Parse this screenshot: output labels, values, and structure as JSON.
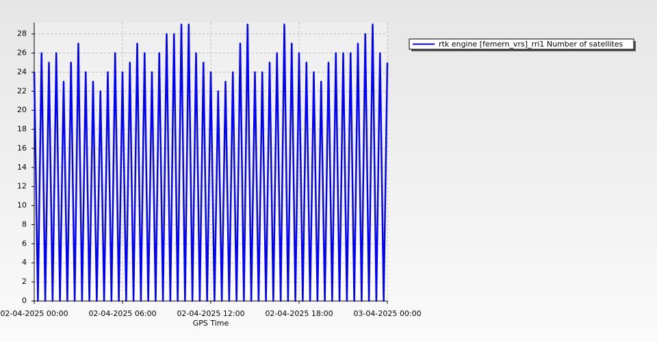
{
  "chart_data": {
    "type": "line",
    "x_label": "GPS Time",
    "x": [
      "02-04-2025 00:00",
      "02-04-2025 00:15",
      "02-04-2025 00:30",
      "02-04-2025 00:45",
      "02-04-2025 01:00",
      "02-04-2025 01:15",
      "02-04-2025 01:30",
      "02-04-2025 01:45",
      "02-04-2025 02:00",
      "02-04-2025 02:15",
      "02-04-2025 02:30",
      "02-04-2025 02:45",
      "02-04-2025 03:00",
      "02-04-2025 03:15",
      "02-04-2025 03:30",
      "02-04-2025 03:45",
      "02-04-2025 04:00",
      "02-04-2025 04:15",
      "02-04-2025 04:30",
      "02-04-2025 04:45",
      "02-04-2025 05:00",
      "02-04-2025 05:15",
      "02-04-2025 05:30",
      "02-04-2025 05:45",
      "02-04-2025 06:00",
      "02-04-2025 06:15",
      "02-04-2025 06:30",
      "02-04-2025 06:45",
      "02-04-2025 07:00",
      "02-04-2025 07:15",
      "02-04-2025 07:30",
      "02-04-2025 07:45",
      "02-04-2025 08:00",
      "02-04-2025 08:15",
      "02-04-2025 08:30",
      "02-04-2025 08:45",
      "02-04-2025 09:00",
      "02-04-2025 09:15",
      "02-04-2025 09:30",
      "02-04-2025 09:45",
      "02-04-2025 10:00",
      "02-04-2025 10:15",
      "02-04-2025 10:30",
      "02-04-2025 10:45",
      "02-04-2025 11:00",
      "02-04-2025 11:15",
      "02-04-2025 11:30",
      "02-04-2025 11:45",
      "02-04-2025 12:00",
      "02-04-2025 12:15",
      "02-04-2025 12:30",
      "02-04-2025 12:45",
      "02-04-2025 13:00",
      "02-04-2025 13:15",
      "02-04-2025 13:30",
      "02-04-2025 13:45",
      "02-04-2025 14:00",
      "02-04-2025 14:15",
      "02-04-2025 14:30",
      "02-04-2025 14:45",
      "02-04-2025 15:00",
      "02-04-2025 15:15",
      "02-04-2025 15:30",
      "02-04-2025 15:45",
      "02-04-2025 16:00",
      "02-04-2025 16:15",
      "02-04-2025 16:30",
      "02-04-2025 16:45",
      "02-04-2025 17:00",
      "02-04-2025 17:15",
      "02-04-2025 17:30",
      "02-04-2025 17:45",
      "02-04-2025 18:00",
      "02-04-2025 18:15",
      "02-04-2025 18:30",
      "02-04-2025 18:45",
      "02-04-2025 19:00",
      "02-04-2025 19:15",
      "02-04-2025 19:30",
      "02-04-2025 19:45",
      "02-04-2025 20:00",
      "02-04-2025 20:15",
      "02-04-2025 20:30",
      "02-04-2025 20:45",
      "02-04-2025 21:00",
      "02-04-2025 21:15",
      "02-04-2025 21:30",
      "02-04-2025 21:45",
      "02-04-2025 22:00",
      "02-04-2025 22:15",
      "02-04-2025 22:30",
      "02-04-2025 22:45",
      "02-04-2025 23:00",
      "02-04-2025 23:15",
      "02-04-2025 23:30",
      "02-04-2025 23:45",
      "03-04-2025 00:00"
    ],
    "series": [
      {
        "name": "rtk engine [femern_vrs]_rri1 Number of satellites",
        "color": "#0000ff",
        "values": [
          24,
          0,
          26,
          0,
          25,
          0,
          26,
          0,
          23,
          0,
          25,
          0,
          27,
          0,
          24,
          0,
          23,
          0,
          22,
          0,
          24,
          0,
          26,
          0,
          24,
          0,
          25,
          0,
          27,
          0,
          26,
          0,
          24,
          0,
          26,
          0,
          28,
          0,
          28,
          0,
          29,
          0,
          29,
          0,
          26,
          0,
          25,
          0,
          24,
          0,
          22,
          0,
          23,
          0,
          24,
          0,
          27,
          0,
          29,
          0,
          24,
          0,
          24,
          0,
          25,
          0,
          26,
          0,
          29,
          0,
          27,
          0,
          26,
          0,
          25,
          0,
          24,
          0,
          23,
          0,
          25,
          0,
          26,
          0,
          26,
          0,
          26,
          0,
          27,
          0,
          28,
          0,
          29,
          0,
          26,
          0,
          25
        ]
      }
    ],
    "xlim": [
      "02-04-2025 00:00",
      "03-04-2025 00:00"
    ],
    "xticks": [
      "02-04-2025 00:00",
      "02-04-2025 06:00",
      "02-04-2025 12:00",
      "02-04-2025 18:00",
      "03-04-2025 00:00"
    ],
    "ylim": [
      0,
      29.2
    ],
    "yticks": [
      0,
      2,
      4,
      6,
      8,
      10,
      12,
      14,
      16,
      18,
      20,
      22,
      24,
      26,
      28
    ],
    "grid": true,
    "legend": "top-right"
  }
}
